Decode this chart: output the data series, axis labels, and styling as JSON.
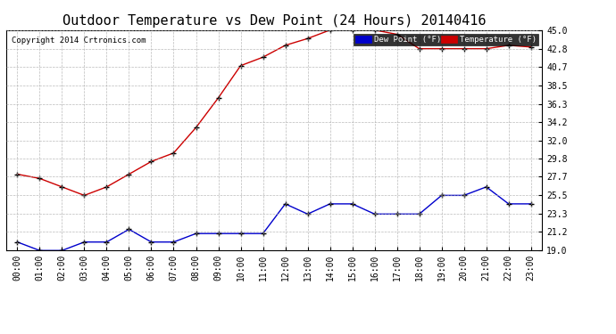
{
  "title": "Outdoor Temperature vs Dew Point (24 Hours) 20140416",
  "copyright": "Copyright 2014 Crtronics.com",
  "hours": [
    "00:00",
    "01:00",
    "02:00",
    "03:00",
    "04:00",
    "05:00",
    "06:00",
    "07:00",
    "08:00",
    "09:00",
    "10:00",
    "11:00",
    "12:00",
    "13:00",
    "14:00",
    "15:00",
    "16:00",
    "17:00",
    "18:00",
    "19:00",
    "20:00",
    "21:00",
    "22:00",
    "23:00"
  ],
  "temperature": [
    28.0,
    27.5,
    26.5,
    25.5,
    26.5,
    28.0,
    29.5,
    30.5,
    33.5,
    37.0,
    40.8,
    41.8,
    43.2,
    44.0,
    45.0,
    45.0,
    45.0,
    44.5,
    42.8,
    42.8,
    42.8,
    42.8,
    43.2,
    43.0
  ],
  "dew_point": [
    20.0,
    19.0,
    19.0,
    20.0,
    20.0,
    21.5,
    20.0,
    20.0,
    21.0,
    21.0,
    21.0,
    21.0,
    24.5,
    23.3,
    24.5,
    24.5,
    23.3,
    23.3,
    23.3,
    25.5,
    25.5,
    26.5,
    24.5,
    24.5
  ],
  "temp_color": "#cc0000",
  "dew_color": "#0000cc",
  "ylim_min": 19.0,
  "ylim_max": 45.0,
  "yticks": [
    19.0,
    21.2,
    23.3,
    25.5,
    27.7,
    29.8,
    32.0,
    34.2,
    36.3,
    38.5,
    40.7,
    42.8,
    45.0
  ],
  "background_color": "#ffffff",
  "plot_bg_color": "#ffffff",
  "grid_color": "#aaaaaa",
  "title_fontsize": 11,
  "tick_fontsize": 7,
  "copyright_fontsize": 6.5,
  "legend_dew_label": "Dew Point (°F)",
  "legend_temp_label": "Temperature (°F)",
  "legend_dew_bg": "#0000cc",
  "legend_temp_bg": "#cc0000"
}
